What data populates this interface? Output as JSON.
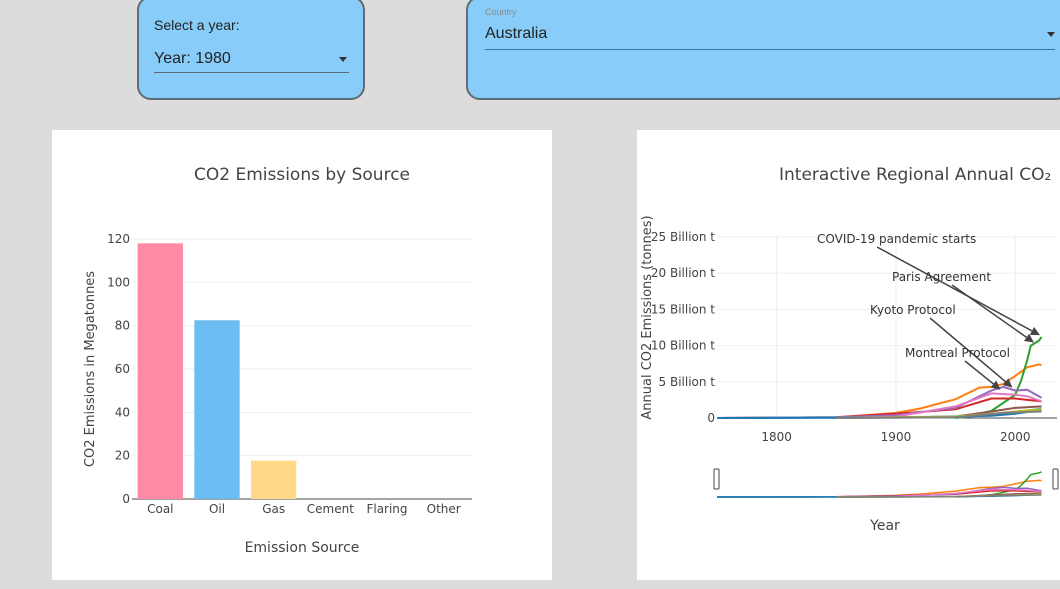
{
  "year_selector": {
    "label": "Select a year:",
    "value": "Year: 1980"
  },
  "country_selector": {
    "label": "Country",
    "value": "Australia"
  },
  "chart_data": [
    {
      "type": "bar",
      "title": "CO2 Emissions by Source",
      "xlabel": "Emission Source",
      "ylabel": "CO2 Emissions in Megatonnes",
      "categories": [
        "Coal",
        "Oil",
        "Gas",
        "Cement",
        "Flaring",
        "Other"
      ],
      "values": [
        118,
        82.5,
        17.7,
        0,
        0,
        0
      ],
      "colors": [
        "#ff8aa5",
        "#6cbef2",
        "#ffd988",
        "#ff8aa5",
        "#6cbef2",
        "#ffd988"
      ],
      "ylim": [
        0,
        120
      ],
      "yticks": [
        0,
        20,
        40,
        60,
        80,
        100,
        120
      ],
      "grid": true
    },
    {
      "type": "line",
      "title": "Interactive Regional Annual CO₂",
      "xlabel": "Year",
      "ylabel": "Annual CO2 Emissions (tonnes)",
      "xlim": [
        1750,
        2035
      ],
      "ylim": [
        0,
        25
      ],
      "xticks": [
        1800,
        1900,
        2000
      ],
      "ytick_labels": [
        {
          "v": 0,
          "label": "0"
        },
        {
          "v": 5,
          "label": "5 Billion t"
        },
        {
          "v": 10,
          "label": "10 Billion t"
        },
        {
          "v": 15,
          "label": "15 Billion t"
        },
        {
          "v": 20,
          "label": "20 Billion t"
        },
        {
          "v": 25,
          "label": "25 Billion t"
        }
      ],
      "grid": true,
      "series": [
        {
          "color": "#ff7f0e",
          "points": [
            [
              1750,
              0
            ],
            [
              1850,
              0.1
            ],
            [
              1900,
              0.7
            ],
            [
              1920,
              1.3
            ],
            [
              1950,
              2.6
            ],
            [
              1970,
              4.2
            ],
            [
              1980,
              4.3
            ],
            [
              1990,
              4.7
            ],
            [
              2000,
              5.8
            ],
            [
              2010,
              7.0
            ],
            [
              2020,
              7.4
            ],
            [
              2022,
              7.3
            ]
          ]
        },
        {
          "color": "#2ca02c",
          "points": [
            [
              1950,
              0
            ],
            [
              1960,
              0.2
            ],
            [
              1980,
              1.0
            ],
            [
              2000,
              3.2
            ],
            [
              2005,
              5.2
            ],
            [
              2010,
              8.0
            ],
            [
              2013,
              10.0
            ],
            [
              2020,
              10.7
            ],
            [
              2022,
              11.2
            ]
          ]
        },
        {
          "color": "#d62728",
          "points": [
            [
              1750,
              0
            ],
            [
              1850,
              0.1
            ],
            [
              1900,
              0.6
            ],
            [
              1950,
              1.2
            ],
            [
              1980,
              2.7
            ],
            [
              2000,
              2.7
            ],
            [
              2010,
              2.5
            ],
            [
              2022,
              2.3
            ]
          ]
        },
        {
          "color": "#9467bd",
          "points": [
            [
              1750,
              0
            ],
            [
              1850,
              0.1
            ],
            [
              1900,
              0.4
            ],
            [
              1950,
              1.4
            ],
            [
              1970,
              3.0
            ],
            [
              1980,
              3.8
            ],
            [
              1990,
              4.3
            ],
            [
              2000,
              3.8
            ],
            [
              2010,
              3.9
            ],
            [
              2022,
              2.8
            ]
          ]
        },
        {
          "color": "#e377c2",
          "points": [
            [
              1850,
              0
            ],
            [
              1900,
              0.2
            ],
            [
              1950,
              1.6
            ],
            [
              1980,
              3.4
            ],
            [
              2000,
              3.2
            ],
            [
              2010,
              3.0
            ],
            [
              2022,
              2.3
            ]
          ]
        },
        {
          "color": "#8c564b",
          "points": [
            [
              1850,
              0
            ],
            [
              1950,
              0.2
            ],
            [
              1980,
              0.9
            ],
            [
              2000,
              1.4
            ],
            [
              2022,
              1.6
            ]
          ]
        },
        {
          "color": "#17becf",
          "points": [
            [
              1750,
              0
            ],
            [
              1950,
              0.1
            ],
            [
              1980,
              0.4
            ],
            [
              2000,
              0.8
            ],
            [
              2022,
              1.3
            ]
          ]
        },
        {
          "color": "#1f77b4",
          "points": [
            [
              1750,
              0
            ],
            [
              1900,
              0.05
            ],
            [
              1980,
              0.3
            ],
            [
              2000,
              0.6
            ],
            [
              2022,
              1.1
            ]
          ]
        },
        {
          "color": "#bcbd22",
          "points": [
            [
              1850,
              0
            ],
            [
              1950,
              0.2
            ],
            [
              1980,
              0.6
            ],
            [
              2000,
              0.9
            ],
            [
              2022,
              1.2
            ]
          ]
        },
        {
          "color": "#7f7f7f",
          "points": [
            [
              1850,
              0
            ],
            [
              1950,
              0.1
            ],
            [
              1990,
              0.7
            ],
            [
              2022,
              0.9
            ]
          ]
        }
      ],
      "annotations": [
        {
          "text": "COVID-19 pandemic starts",
          "x": 2020,
          "y": 11.5
        },
        {
          "text": "Paris Agreement",
          "x": 2015,
          "y": 10.5
        },
        {
          "text": "Kyoto Protocol",
          "x": 1997,
          "y": 4.3
        },
        {
          "text": "Montreal Protocol",
          "x": 1987,
          "y": 4.0
        }
      ]
    }
  ]
}
